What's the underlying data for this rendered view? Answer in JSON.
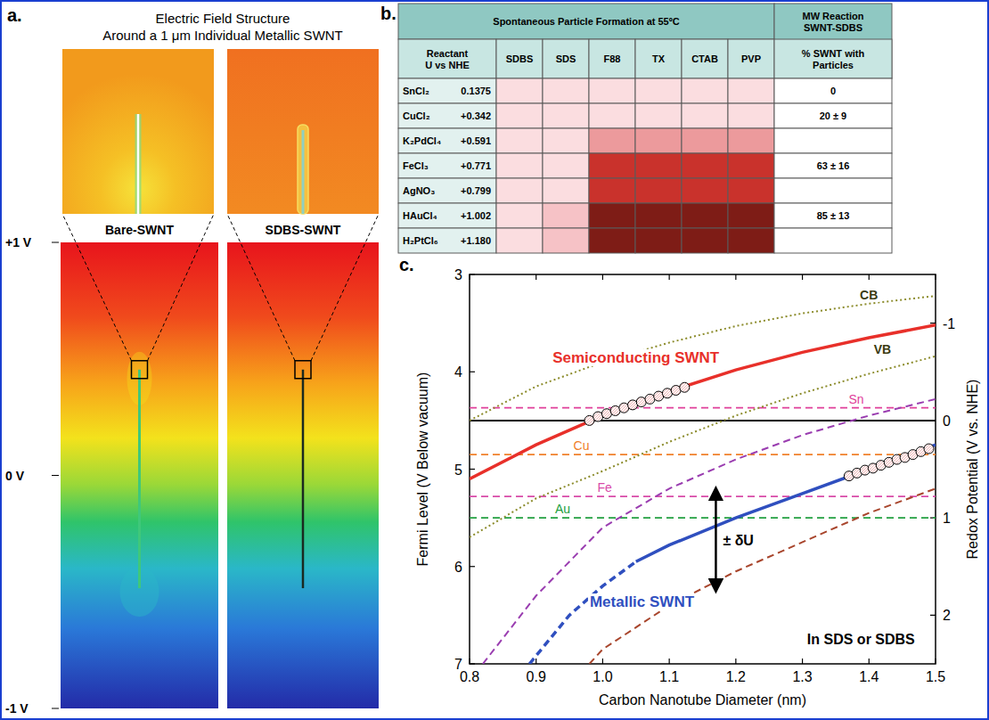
{
  "panel_a": {
    "letter": "a.",
    "title": [
      "Electric Field Structure",
      "Around a 1 μm Individual Metallic SWNT"
    ],
    "labels": [
      "Bare-SWNT",
      "SDBS-SWNT"
    ],
    "potential_range": [
      -1,
      1
    ],
    "potential_ticks": [
      {
        "value": 1,
        "label": "+1 V"
      },
      {
        "value": 0,
        "label": "0 V"
      },
      {
        "value": -1,
        "label": "-1 V"
      }
    ]
  },
  "panel_b": {
    "letter": "b.",
    "group_header": "Spontaneous Particle Formation at 55ºC",
    "mw_header": "MW Reaction SWNT-SDBS",
    "reactant_header": "Reactant U vs NHE",
    "surfactants": [
      "SDBS",
      "SDS",
      "F88",
      "TX",
      "CTAB",
      "PVP"
    ],
    "result_header": "% SWNT with Particles",
    "colors": [
      "#fbdde0",
      "#f6c2c6",
      "#ec9a9c",
      "#c9322c",
      "#7e1c16"
    ],
    "rows": [
      {
        "reactant": "SnCl₂",
        "potential": "0.1375",
        "levels": [
          1,
          1,
          1,
          1,
          1,
          1
        ],
        "result": "0"
      },
      {
        "reactant": "CuCl₂",
        "potential": "+0.342",
        "levels": [
          1,
          1,
          1,
          1,
          1,
          1
        ],
        "result": "20 ± 9"
      },
      {
        "reactant": "K₂PdCl₄",
        "potential": "+0.591",
        "levels": [
          1,
          1,
          3,
          3,
          3,
          3
        ],
        "result": null
      },
      {
        "reactant": "FeCl₃",
        "potential": "+0.771",
        "levels": [
          1,
          1,
          4,
          4,
          4,
          4
        ],
        "result": "63 ± 16"
      },
      {
        "reactant": "AgNO₃",
        "potential": "+0.799",
        "levels": [
          1,
          1,
          4,
          4,
          4,
          4
        ],
        "result": null
      },
      {
        "reactant": "HAuCl₄",
        "potential": "+1.002",
        "levels": [
          1,
          2,
          5,
          5,
          5,
          5
        ],
        "result": "85 ± 13"
      },
      {
        "reactant": "H₂PtCl₆",
        "potential": "+1.180",
        "levels": [
          1,
          2,
          5,
          5,
          5,
          5
        ],
        "result": null
      }
    ]
  },
  "chart_data": {
    "type": "line",
    "letter": "c.",
    "xlabel": "Carbon Nanotube Diameter (nm)",
    "ylabel": "Fermi Level (V Below vacuum)",
    "y2label": "Redox Potential (V vs. NHE)",
    "xlim": [
      0.8,
      1.5
    ],
    "xticks": [
      0.8,
      0.9,
      {
        "value": 1,
        "label": "1.0"
      },
      1.1,
      1.2,
      1.3,
      1.4,
      1.5
    ],
    "ylim": [
      7,
      3
    ],
    "yticks": [
      3,
      4,
      5,
      6,
      7
    ],
    "y2lim": [
      2.5,
      -1.5
    ],
    "y2ticks": [
      -1,
      0,
      1,
      2
    ],
    "grid": false,
    "series": [
      {
        "name": "CB",
        "color": "#8c8c2c",
        "line_style": "dotted",
        "x": [
          0.8,
          0.9,
          1.0,
          1.1,
          1.2,
          1.3,
          1.4,
          1.5
        ],
        "values": [
          4.5,
          4.15,
          3.9,
          3.7,
          3.53,
          3.4,
          3.3,
          3.22
        ]
      },
      {
        "name": "VB",
        "color": "#8c8c2c",
        "line_style": "dotted",
        "x": [
          0.8,
          0.9,
          1.0,
          1.1,
          1.2,
          1.3,
          1.4,
          1.5
        ],
        "values": [
          5.7,
          5.3,
          5.02,
          4.72,
          4.45,
          4.22,
          4.02,
          3.84
        ]
      },
      {
        "name": "Semiconducting SWNT",
        "color": "#e8302a",
        "line_style": "solid",
        "x": [
          0.8,
          0.9,
          1.0,
          1.1,
          1.2,
          1.3,
          1.4,
          1.5
        ],
        "values": [
          5.1,
          4.75,
          4.45,
          4.2,
          3.98,
          3.8,
          3.65,
          3.52
        ]
      },
      {
        "name": "Metallic SWNT",
        "color": "#2f4fbf",
        "line_style": "solid",
        "x": [
          1.05,
          1.1,
          1.2,
          1.3,
          1.4,
          1.5
        ],
        "values": [
          5.95,
          5.78,
          5.5,
          5.25,
          5.0,
          4.75
        ]
      },
      {
        "color": "#2f4fbf",
        "line_style": "dashed",
        "x": [
          0.89,
          0.95,
          1.0,
          1.05
        ],
        "values": [
          7.0,
          6.5,
          6.2,
          5.95
        ]
      },
      {
        "color": "#9a3db0",
        "line_style": "dashed",
        "x": [
          0.82,
          0.9,
          1.0,
          1.1,
          1.2,
          1.3,
          1.4,
          1.5
        ],
        "values": [
          7.0,
          6.3,
          5.6,
          5.2,
          4.9,
          4.65,
          4.45,
          4.28
        ]
      },
      {
        "color": "#a8452c",
        "line_style": "dashed",
        "x": [
          0.98,
          1.0,
          1.1,
          1.2,
          1.3,
          1.4,
          1.5
        ],
        "values": [
          7.0,
          6.85,
          6.4,
          6.05,
          5.75,
          5.45,
          5.2
        ]
      },
      {
        "type": "scatter",
        "marker": "circle",
        "color": "#000000",
        "x": [
          0.98,
          0.993,
          1.006,
          1.019,
          1.032,
          1.045,
          1.058,
          1.071,
          1.084,
          1.097,
          1.11,
          1.123
        ],
        "values": [
          4.5,
          4.46,
          4.43,
          4.4,
          4.37,
          4.34,
          4.31,
          4.28,
          4.25,
          4.22,
          4.19,
          4.16
        ]
      },
      {
        "type": "scatter",
        "marker": "circle",
        "color": "#000000",
        "x": [
          1.37,
          1.382,
          1.394,
          1.406,
          1.418,
          1.43,
          1.442,
          1.454,
          1.466,
          1.478,
          1.49
        ],
        "values": [
          5.07,
          5.04,
          5.01,
          4.99,
          4.96,
          4.93,
          4.9,
          4.88,
          4.85,
          4.82,
          4.79
        ]
      }
    ],
    "reference_lines": [
      {
        "label": "Sn",
        "value": 4.37,
        "color": "#e0409a",
        "line_style": "dashed"
      },
      {
        "label": "Cu",
        "value": 4.85,
        "color": "#f0802a",
        "line_style": "dashed"
      },
      {
        "label": "Fe",
        "value": 5.28,
        "color": "#d84aa8",
        "line_style": "dashed"
      },
      {
        "label": "Au",
        "value": 5.5,
        "color": "#22a040",
        "line_style": "dashed"
      },
      {
        "value": 4.5,
        "color": "#000000",
        "line_style": "solid"
      }
    ],
    "annotations": [
      {
        "text": "± δU",
        "x": 1.17,
        "y_from": 5.2,
        "y_to": 6.25
      },
      {
        "text": "In SDS or SDBS"
      }
    ]
  }
}
